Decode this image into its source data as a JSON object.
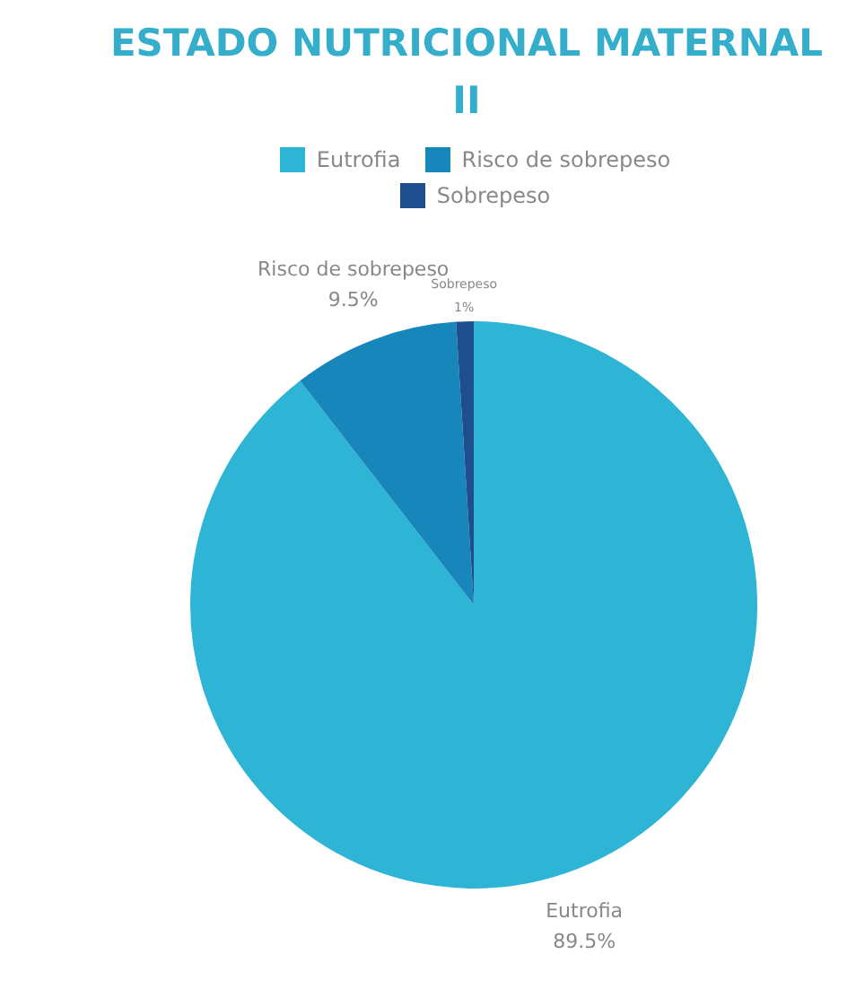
{
  "chart_data": {
    "type": "pie",
    "title": "ESTADO NUTRICIONAL MATERNAL II",
    "categories": [
      "Eutrofia",
      "Risco de sobrepeso",
      "Sobrepeso"
    ],
    "values": [
      89.5,
      9.5,
      1
    ],
    "value_labels": [
      "89.5%",
      "9.5%",
      "1%"
    ],
    "colors": [
      "#2eb4d4",
      "#1787bb",
      "#1f4e8e"
    ],
    "legend": "top"
  }
}
